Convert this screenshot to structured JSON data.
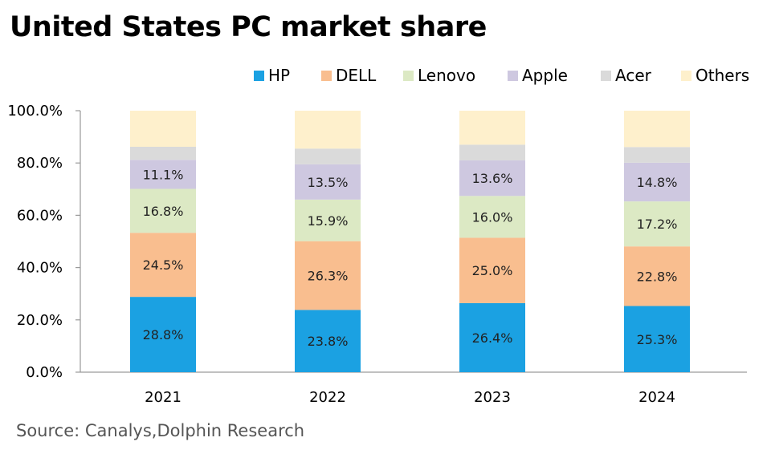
{
  "title": "United States PC market share",
  "source": "Source: Canalys,Dolphin Research",
  "chart_data": {
    "type": "bar",
    "stacked": true,
    "title": "United States PC market share",
    "xlabel": "",
    "ylabel": "",
    "ylim": [
      0,
      100
    ],
    "yticks": [
      "0.0%",
      "20.0%",
      "40.0%",
      "60.0%",
      "80.0%",
      "100.0%"
    ],
    "categories": [
      "2021",
      "2022",
      "2023",
      "2024"
    ],
    "legend_position": "top-right",
    "grid": false,
    "series": [
      {
        "name": "HP",
        "color": "#1BA1E2",
        "values": [
          28.8,
          23.8,
          26.4,
          25.3
        ],
        "labels": [
          "28.8%",
          "23.8%",
          "26.4%",
          "25.3%"
        ]
      },
      {
        "name": "DELL",
        "color": "#F9BE8F",
        "values": [
          24.5,
          26.3,
          25.0,
          22.8
        ],
        "labels": [
          "24.5%",
          "26.3%",
          "25.0%",
          "22.8%"
        ]
      },
      {
        "name": "Lenovo",
        "color": "#DCE9C4",
        "values": [
          16.8,
          15.9,
          16.0,
          17.2
        ],
        "labels": [
          "16.8%",
          "15.9%",
          "16.0%",
          "17.2%"
        ]
      },
      {
        "name": "Apple",
        "color": "#CEC8E0",
        "values": [
          11.1,
          13.5,
          13.6,
          14.8
        ],
        "labels": [
          "11.1%",
          "13.5%",
          "13.6%",
          "14.8%"
        ]
      },
      {
        "name": "Acer",
        "color": "#DADADA",
        "values": [
          5.0,
          6.0,
          6.0,
          6.0
        ],
        "labels": [
          "",
          "",
          "",
          ""
        ]
      },
      {
        "name": "Others",
        "color": "#FEF0CC",
        "values": [
          13.8,
          14.5,
          13.0,
          13.9
        ],
        "labels": [
          "",
          "",
          "",
          ""
        ]
      }
    ]
  }
}
